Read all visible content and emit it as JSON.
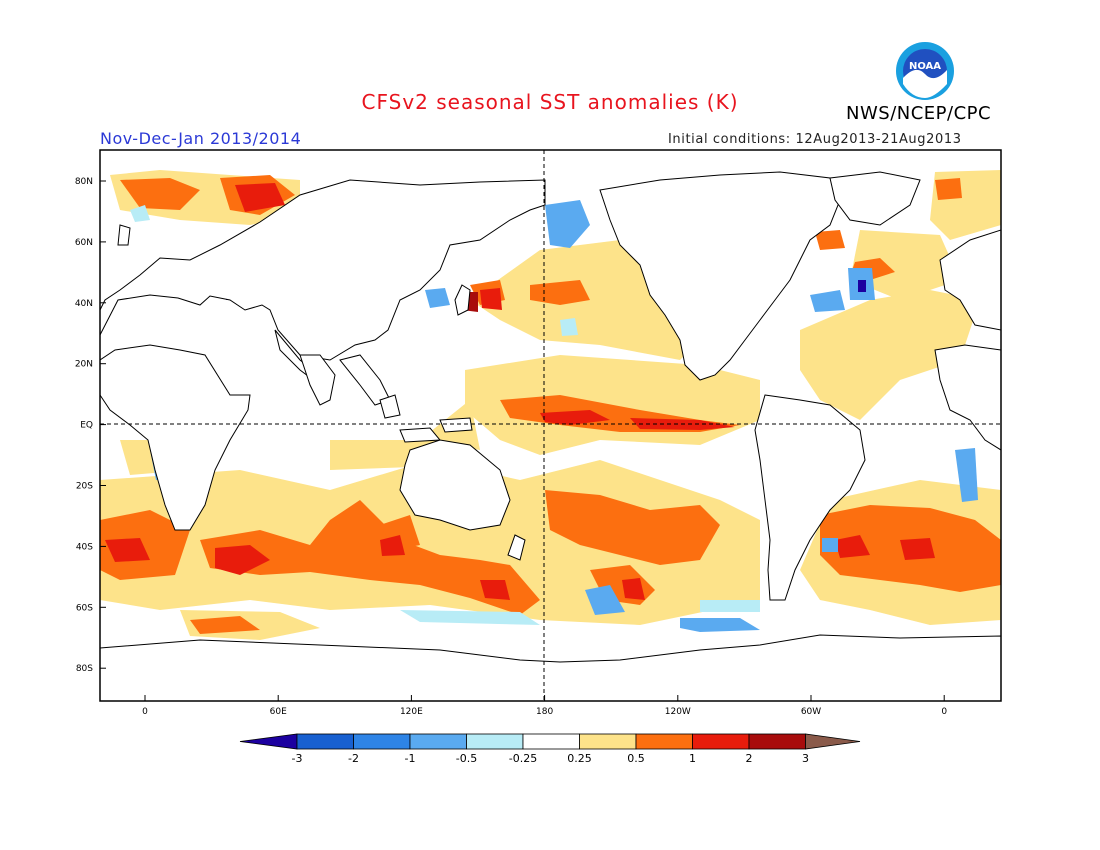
{
  "header": {
    "title": "CFSv2 seasonal SST anomalies (K)",
    "organization": "NWS/NCEP/CPC",
    "logo_text": "NOAA",
    "period": "Nov-Dec-Jan 2013/2014",
    "initial_conditions": "Initial conditions: 12Aug2013-21Aug2013"
  },
  "map": {
    "lat_labels": [
      "80N",
      "60N",
      "40N",
      "20N",
      "EQ",
      "20S",
      "40S",
      "60S",
      "80S"
    ],
    "lon_labels": [
      "0",
      "60E",
      "120E",
      "180",
      "120W",
      "60W",
      "0"
    ]
  },
  "colorbar": {
    "labels": [
      "-3",
      "-2",
      "-1",
      "-0.5",
      "-0.25",
      "0.25",
      "0.5",
      "1",
      "2",
      "3"
    ],
    "colors": [
      "#1c00a0",
      "#1860d0",
      "#2e84e6",
      "#5aaaf0",
      "#b8ecf6",
      "#ffffff",
      "#fde38a",
      "#fc6f10",
      "#e81c0c",
      "#a80c0c",
      "#8a5a4a"
    ]
  },
  "colors": {
    "title": "#e8141e",
    "period": "#2b39d6",
    "land": "#ffffff",
    "coast": "#000000"
  }
}
